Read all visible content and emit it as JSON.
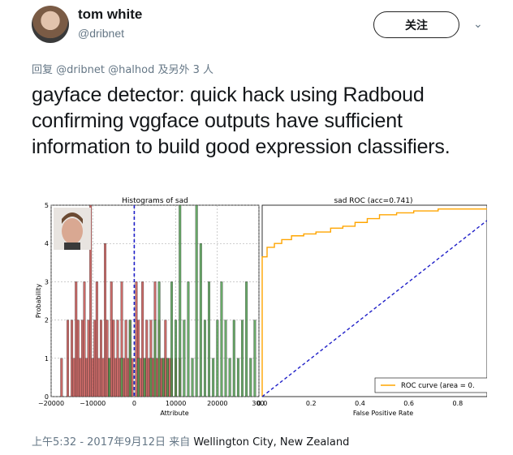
{
  "user": {
    "display_name": "tom white",
    "handle": "@dribnet"
  },
  "follow_label": "关注",
  "reply": {
    "prefix": "回复",
    "mention1": "@dribnet",
    "mention2": "@halhod",
    "suffix": "及另外 3 人"
  },
  "tweet": {
    "text": "gayface detector: quick hack using Radboud confirming vggface outputs have sufficient information to build good expression classifiers."
  },
  "footer": {
    "time": "上午5:32 - 2017年9月12日",
    "from": "来自",
    "location": "Wellington City, New Zealand"
  },
  "chart_data": [
    {
      "type": "bar",
      "title": "Histograms of sad",
      "xlabel": "Attribute",
      "ylabel": "Probability",
      "xlim": [
        -20000,
        30000
      ],
      "ylim": [
        0,
        5
      ],
      "xticks": [
        "−20000",
        "−10000",
        "0",
        "10000",
        "20000",
        "300"
      ],
      "yticks": [
        "0",
        "1",
        "2",
        "3",
        "4",
        "5"
      ],
      "threshold_x": 0,
      "grid": true,
      "series": [
        {
          "color": "#c0504d",
          "x": [
            -17500,
            -16000,
            -15000,
            -14500,
            -14000,
            -13500,
            -13000,
            -12500,
            -12000,
            -11500,
            -11000,
            -10500,
            -10000,
            -9500,
            -9000,
            -8500,
            -8000,
            -7500,
            -7000,
            -6500,
            -6000,
            -5500,
            -5000,
            -4500,
            -4000,
            -3500,
            -3000,
            -2500,
            -2000,
            -1500,
            -1000,
            -500,
            500,
            1000,
            1500,
            2000,
            2500,
            3000,
            3500,
            4000,
            4500,
            5000,
            5500,
            6000,
            6500,
            7000,
            7500,
            8000,
            8500,
            9000,
            10000,
            11000
          ],
          "values": [
            1,
            2,
            2,
            1,
            3,
            2,
            1,
            2,
            3,
            1,
            2,
            5,
            1,
            2,
            3,
            1,
            2,
            1,
            4,
            2,
            1,
            3,
            2,
            1,
            2,
            1,
            3,
            1,
            2,
            1,
            2,
            1,
            3,
            2,
            1,
            3,
            1,
            2,
            1,
            2,
            1,
            3,
            1,
            2,
            1,
            1,
            2,
            1,
            1,
            1,
            1,
            1
          ]
        },
        {
          "color": "#4f9a4f",
          "x": [
            -6000,
            -3000,
            -1000,
            1000,
            2500,
            4000,
            5000,
            6000,
            7000,
            8000,
            9000,
            10000,
            11000,
            12000,
            13000,
            14000,
            15000,
            16000,
            17000,
            18000,
            19000,
            20000,
            21000,
            22000,
            23000,
            24000,
            25000,
            26000,
            27000,
            28000,
            29000
          ],
          "values": [
            1,
            1,
            2,
            1,
            1,
            1,
            2,
            3,
            1,
            1,
            3,
            2,
            5,
            2,
            3,
            1,
            5,
            4,
            2,
            3,
            1,
            2,
            3,
            2,
            1,
            2,
            1,
            2,
            3,
            1,
            2
          ]
        }
      ]
    },
    {
      "type": "line",
      "title": "sad ROC (acc=0.741)",
      "xlabel": "False Positive Rate",
      "ylabel": "",
      "xlim": [
        0,
        0.92
      ],
      "ylim": [
        0,
        1
      ],
      "xticks": [
        "0.0",
        "0.2",
        "0.4",
        "0.6",
        "0.8"
      ],
      "legend": "bottom-right",
      "series": [
        {
          "name": "ROC curve (area = 0.",
          "color": "#ffa500",
          "x": [
            0.0,
            0.0,
            0.02,
            0.02,
            0.05,
            0.05,
            0.08,
            0.08,
            0.12,
            0.12,
            0.17,
            0.17,
            0.22,
            0.22,
            0.28,
            0.28,
            0.33,
            0.33,
            0.38,
            0.38,
            0.43,
            0.43,
            0.48,
            0.48,
            0.55,
            0.55,
            0.62,
            0.62,
            0.72,
            0.72,
            0.92
          ],
          "values": [
            0.0,
            0.73,
            0.73,
            0.78,
            0.78,
            0.8,
            0.8,
            0.82,
            0.82,
            0.84,
            0.84,
            0.85,
            0.85,
            0.86,
            0.86,
            0.88,
            0.88,
            0.89,
            0.89,
            0.91,
            0.91,
            0.93,
            0.93,
            0.95,
            0.95,
            0.96,
            0.96,
            0.97,
            0.97,
            0.98,
            0.98
          ]
        },
        {
          "color": "#1f1fc8",
          "style": "dashed",
          "x": [
            0.0,
            0.92
          ],
          "values": [
            0.0,
            0.92
          ]
        }
      ]
    }
  ],
  "colors": {
    "text": "#14171a",
    "muted": "#657786"
  }
}
